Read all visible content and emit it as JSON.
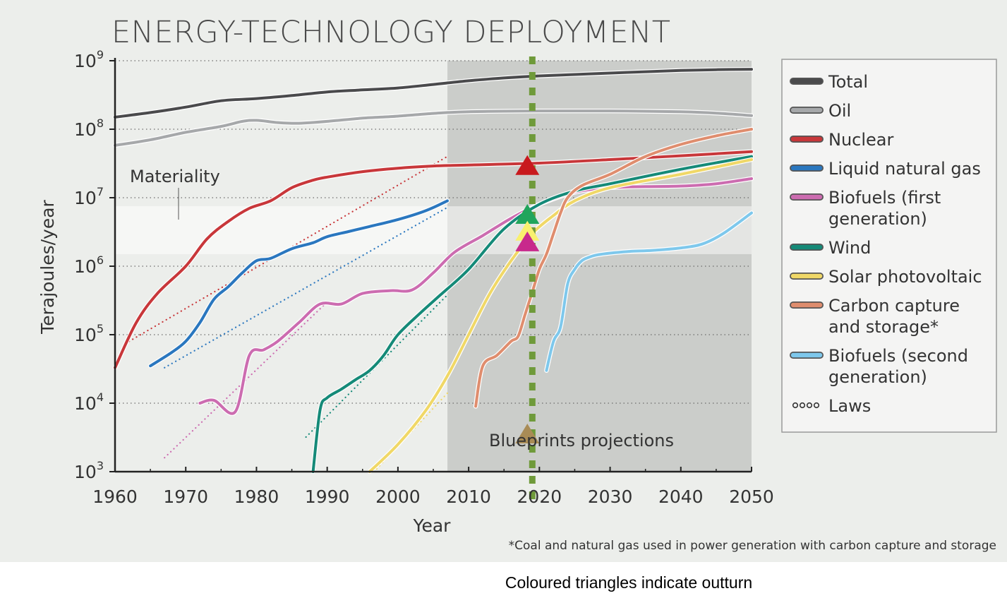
{
  "chart_data": {
    "type": "line",
    "title": "ENERGY-TECHNOLOGY DEPLOYMENT",
    "xlabel": "Year",
    "ylabel": "Terajoules/year",
    "xlim": [
      1960,
      2050
    ],
    "ylim": [
      1000,
      1000000000
    ],
    "yscale": "log",
    "xticks": [
      1960,
      1970,
      1980,
      1990,
      2000,
      2010,
      2020,
      2030,
      2040,
      2050
    ],
    "ytick_labels": [
      {
        "base": "10",
        "exp": "3"
      },
      {
        "base": "10",
        "exp": "4"
      },
      {
        "base": "10",
        "exp": "5"
      },
      {
        "base": "10",
        "exp": "6"
      },
      {
        "base": "10",
        "exp": "7"
      },
      {
        "base": "10",
        "exp": "8"
      },
      {
        "base": "10",
        "exp": "9"
      }
    ],
    "grid": "horizontal dotted",
    "legend_position": "right",
    "annotations": {
      "materiality": "Materiality",
      "projections": "Blueprints projections",
      "footnote": "*Coal and natural gas used in power generation with carbon capture and storage"
    },
    "series": [
      {
        "name": "Total",
        "color": "#4a4a4c",
        "x": [
          1960,
          1965,
          1970,
          1975,
          1980,
          1985,
          1990,
          1995,
          2000,
          2005,
          2010,
          2015,
          2020,
          2025,
          2030,
          2035,
          2040,
          2045,
          2050
        ],
        "y": [
          150000000,
          175000000,
          210000000,
          260000000,
          280000000,
          310000000,
          350000000,
          375000000,
          400000000,
          450000000,
          510000000,
          560000000,
          600000000,
          630000000,
          660000000,
          690000000,
          720000000,
          740000000,
          750000000
        ]
      },
      {
        "name": "Oil",
        "color": "#a6a8aa",
        "x": [
          1960,
          1965,
          1970,
          1975,
          1978,
          1980,
          1983,
          1986,
          1990,
          1995,
          2000,
          2005,
          2010,
          2020,
          2030,
          2040,
          2045,
          2050
        ],
        "y": [
          58000000,
          70000000,
          90000000,
          110000000,
          130000000,
          135000000,
          125000000,
          122000000,
          130000000,
          145000000,
          155000000,
          170000000,
          180000000,
          185000000,
          185000000,
          180000000,
          172000000,
          158000000
        ]
      },
      {
        "name": "Nuclear",
        "color": "#c8373a",
        "x": [
          1960,
          1963,
          1966,
          1970,
          1973,
          1976,
          1979,
          1982,
          1985,
          1988,
          1990,
          1995,
          2000,
          2005,
          2010,
          2020,
          2030,
          2040,
          2050
        ],
        "y": [
          33000,
          150000,
          400000,
          1000000,
          2500000,
          4500000,
          7000000,
          9000000,
          14000000,
          18000000,
          20000000,
          24000000,
          27000000,
          29000000,
          30000000,
          32000000,
          36000000,
          41000000,
          47000000
        ]
      },
      {
        "name": "Liquid natural gas",
        "color": "#2a77bf",
        "x": [
          1965,
          1968,
          1970,
          1972,
          1974,
          1976,
          1978,
          1980,
          1982,
          1985,
          1988,
          1990,
          1993,
          1996,
          2000,
          2004,
          2007
        ],
        "y": [
          35000,
          55000,
          80000,
          150000,
          330000,
          500000,
          800000,
          1200000,
          1300000,
          1800000,
          2200000,
          2700000,
          3200000,
          3800000,
          4800000,
          6500000,
          9000000
        ]
      },
      {
        "name": "Biofuels (first generation)",
        "color": "#cc6cb0",
        "x": [
          1972,
          1974,
          1977,
          1979,
          1981,
          1983,
          1986,
          1989,
          1992,
          1995,
          1999,
          2002,
          2005,
          2008,
          2012,
          2016,
          2020,
          2025,
          2030,
          2035,
          2040,
          2045,
          2050
        ],
        "y": [
          10000,
          11000,
          7500,
          50000,
          60000,
          80000,
          150000,
          280000,
          280000,
          400000,
          440000,
          450000,
          800000,
          1600000,
          2800000,
          5000000,
          8000000,
          12000000,
          14000000,
          14500000,
          14800000,
          16000000,
          19000000
        ]
      },
      {
        "name": "Wind",
        "color": "#158a78",
        "x": [
          1988,
          1989,
          1990,
          1992,
          1994,
          1996,
          1998,
          2000,
          2003,
          2006,
          2010,
          2015,
          2020,
          2025,
          2030,
          2040,
          2050
        ],
        "y": [
          1000,
          8000,
          12000,
          16000,
          22000,
          30000,
          50000,
          100000,
          200000,
          380000,
          900000,
          3500000,
          8000000,
          12500000,
          16000000,
          26000000,
          40000000
        ]
      },
      {
        "name": "Solar photovoltaic",
        "color": "#f0d867",
        "x": [
          1996,
          2000,
          2004,
          2007,
          2010,
          2013,
          2016,
          2019,
          2022,
          2025,
          2030,
          2040,
          2050
        ],
        "y": [
          1000,
          2500,
          8000,
          25000,
          100000,
          400000,
          1200000,
          3000000,
          5500000,
          9000000,
          14000000,
          22000000,
          36000000
        ]
      },
      {
        "name": "Carbon capture and storage*",
        "color": "#df8d6e",
        "x": [
          2011,
          2012,
          2014,
          2016,
          2017,
          2018,
          2019,
          2020,
          2021,
          2022,
          2023,
          2024,
          2026,
          2030,
          2035,
          2040,
          2045,
          2050
        ],
        "y": [
          9000,
          35000,
          50000,
          80000,
          95000,
          200000,
          420000,
          900000,
          1500000,
          3000000,
          6000000,
          10000000,
          15000000,
          22000000,
          40000000,
          60000000,
          80000000,
          100000000
        ]
      },
      {
        "name": "Biofuels (second generation)",
        "color": "#7ec8ec",
        "x": [
          2021,
          2022,
          2023,
          2024,
          2025,
          2026,
          2027,
          2028,
          2030,
          2033,
          2036,
          2040,
          2043,
          2046,
          2050
        ],
        "y": [
          30000,
          80000,
          130000,
          550000,
          900000,
          1200000,
          1350000,
          1450000,
          1550000,
          1650000,
          1700000,
          1850000,
          2100000,
          3000000,
          6000000
        ]
      }
    ],
    "laws": [
      {
        "series": "Nuclear",
        "x": [
          1962,
          2007
        ],
        "y": [
          80000,
          40000000
        ]
      },
      {
        "series": "Liquid natural gas",
        "x": [
          1967,
          2007
        ],
        "y": [
          33000,
          7200000
        ]
      },
      {
        "series": "Biofuels (first generation)",
        "x": [
          1967,
          1990
        ],
        "y": [
          1600,
          300000
        ]
      },
      {
        "series": "Wind",
        "x": [
          1987,
          2007
        ],
        "y": [
          3200,
          380000
        ]
      },
      {
        "series": "Solar photovoltaic",
        "x": [
          1997,
          2007
        ],
        "y": [
          1100,
          14000
        ]
      }
    ],
    "outturn_triangles": [
      {
        "series": "Nuclear",
        "x": 2018,
        "y": 30000000
      },
      {
        "series": "Wind",
        "x": 2018,
        "y": 5800000
      },
      {
        "series": "Solar photovoltaic",
        "x": 2018,
        "y": 3300000
      },
      {
        "series": "Biofuels (first generation)",
        "x": 2018,
        "y": 2300000
      },
      {
        "series": "Carbon capture and storage*",
        "x": 2018,
        "y": 3600
      }
    ],
    "projection_start_year": 2007,
    "outturn_year": 2019,
    "materiality_band": [
      1500000,
      7500000
    ],
    "marker_colors": {
      "Nuclear": "#c8191d",
      "Wind": "#21a55c",
      "Solar photovoltaic": "#f9f06e",
      "Biofuels (first generation)": "#c8298c",
      "Carbon capture and storage*": "#a98c56",
      "outturn_line": "#6f9a3a"
    },
    "legend": [
      {
        "label_lines": [
          "Total"
        ],
        "color": "#4a4a4c"
      },
      {
        "label_lines": [
          "Oil"
        ],
        "color": "#a6a8aa"
      },
      {
        "label_lines": [
          "Nuclear"
        ],
        "color": "#c8373a"
      },
      {
        "label_lines": [
          "Liquid natural gas"
        ],
        "color": "#2a77bf"
      },
      {
        "label_lines": [
          "Biofuels (first",
          "generation)"
        ],
        "color": "#cc6cb0"
      },
      {
        "label_lines": [
          "Wind"
        ],
        "color": "#158a78"
      },
      {
        "label_lines": [
          "Solar photovoltaic"
        ],
        "color": "#f0d867"
      },
      {
        "label_lines": [
          "Carbon capture",
          "and storage*"
        ],
        "color": "#df8d6e"
      },
      {
        "label_lines": [
          "Biofuels (second",
          "generation)"
        ],
        "color": "#7ec8ec"
      },
      {
        "label_lines": [
          "Laws"
        ],
        "color": "#333333",
        "dotted": true
      }
    ]
  },
  "caption": "Coloured triangles indicate outturn"
}
